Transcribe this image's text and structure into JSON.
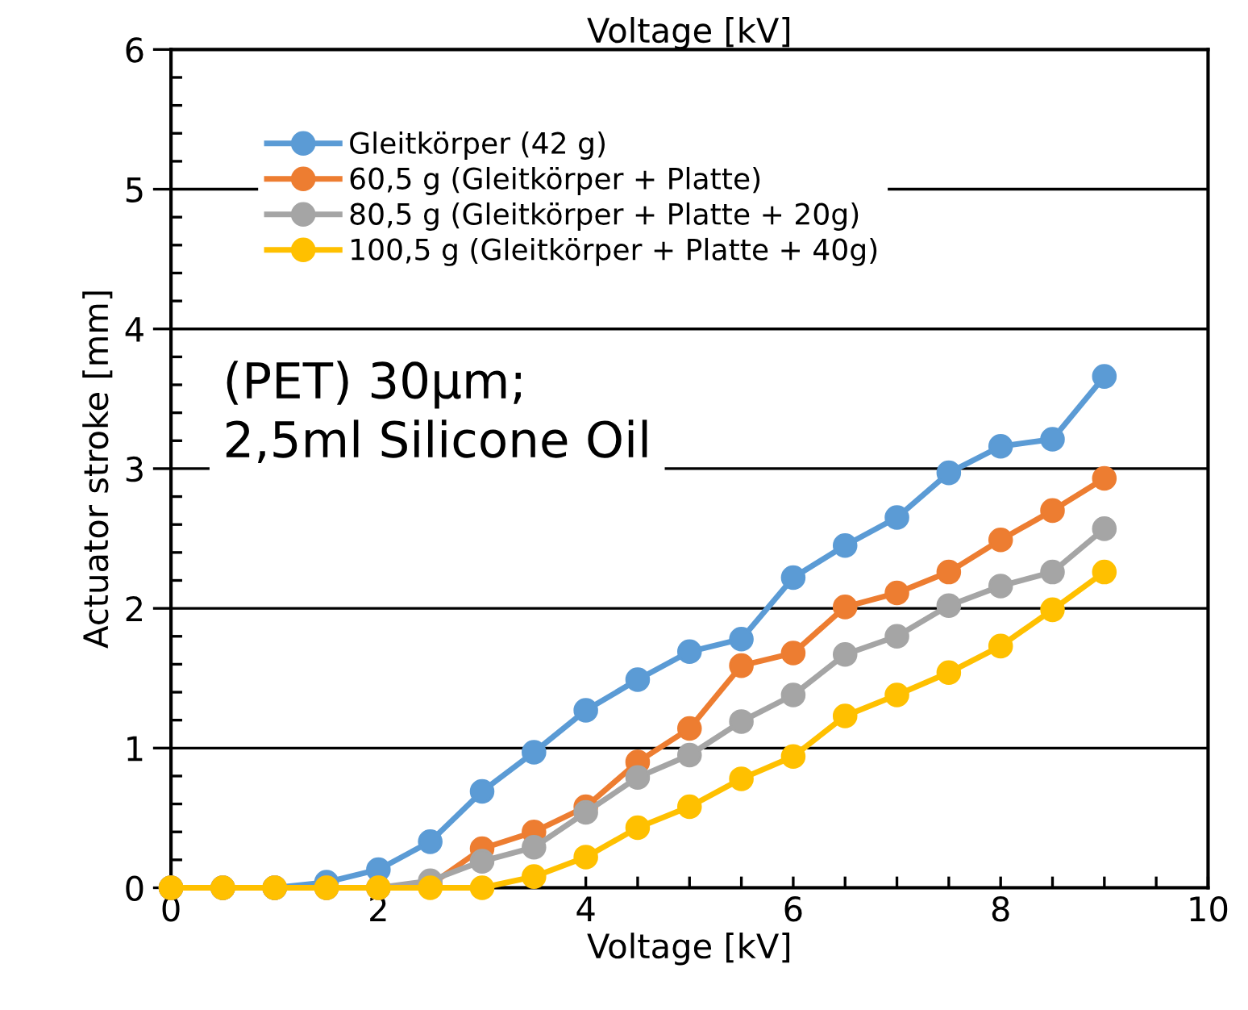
{
  "chart_data": {
    "type": "line",
    "title": "Voltage [kV]",
    "xlabel": "Voltage [kV]",
    "ylabel": "Actuator stroke [mm]",
    "x": [
      0,
      0.5,
      1,
      1.5,
      2,
      2.5,
      3,
      3.5,
      4,
      4.5,
      5,
      5.5,
      6,
      6.5,
      7,
      7.5,
      8,
      8.5,
      9
    ],
    "series": [
      {
        "name": "Gleitkörper (42 g)",
        "color": "#5b9bd5",
        "values": [
          0,
          0,
          0,
          0.04,
          0.13,
          0.33,
          0.69,
          0.97,
          1.27,
          1.49,
          1.69,
          1.78,
          2.22,
          2.45,
          2.65,
          2.97,
          3.16,
          3.21,
          3.66
        ]
      },
      {
        "name": "60,5 g (Gleitkörper + Platte)",
        "color": "#ed7d31",
        "values": [
          0,
          0,
          0,
          0,
          0,
          0.02,
          0.28,
          0.4,
          0.58,
          0.9,
          1.14,
          1.59,
          1.68,
          2.01,
          2.11,
          2.26,
          2.49,
          2.7,
          2.93
        ]
      },
      {
        "name": "80,5 g (Gleitkörper + Platte + 20g)",
        "color": "#a5a5a5",
        "values": [
          0,
          0,
          0,
          0,
          0,
          0.05,
          0.19,
          0.29,
          0.54,
          0.79,
          0.95,
          1.19,
          1.38,
          1.67,
          1.8,
          2.02,
          2.16,
          2.26,
          2.57
        ]
      },
      {
        "name": "100,5 g (Gleitkörper + Platte + 40g)",
        "color": "#ffc000",
        "values": [
          0,
          0,
          0,
          0,
          0,
          0,
          0,
          0.08,
          0.22,
          0.43,
          0.58,
          0.78,
          0.94,
          1.23,
          1.38,
          1.54,
          1.73,
          1.99,
          2.26
        ]
      }
    ],
    "annotations": [
      "(PET) 30µm;\n2,5ml Silicone Oil"
    ],
    "xlim": [
      0,
      10
    ],
    "xticks": [
      0,
      2,
      4,
      6,
      8,
      10
    ],
    "ylim": [
      0,
      6
    ],
    "yticks": [
      0,
      1,
      2,
      3,
      4,
      5,
      6
    ],
    "grid": "y",
    "legend": "top left",
    "marker": "circle",
    "line_style": "solid"
  }
}
